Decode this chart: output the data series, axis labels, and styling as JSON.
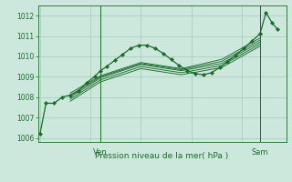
{
  "title": "Pression niveau de la mer( hPa )",
  "background_color": "#cce8dc",
  "grid_color": "#aacfbe",
  "line_color": "#1a6b2a",
  "ylim": [
    1005.8,
    1012.5
  ],
  "yticks": [
    1006,
    1007,
    1008,
    1009,
    1010,
    1011,
    1012
  ],
  "xlabel_ven": "Ven",
  "xlabel_sam": "Sam",
  "main_series": {
    "x": [
      0,
      0.3,
      0.7,
      1.1,
      1.5,
      1.9,
      2.3,
      2.7,
      3.0,
      3.3,
      3.7,
      4.1,
      4.5,
      4.9,
      5.3,
      5.7,
      6.1,
      6.5,
      6.9,
      7.3,
      7.7,
      8.1,
      8.5,
      8.9,
      9.3,
      9.7,
      10.1,
      10.5,
      10.9
    ],
    "y": [
      1006.2,
      1007.7,
      1007.7,
      1008.0,
      1008.1,
      1008.3,
      1008.7,
      1009.0,
      1009.3,
      1009.5,
      1009.8,
      1010.1,
      1010.4,
      1010.55,
      1010.55,
      1010.4,
      1010.15,
      1009.85,
      1009.55,
      1009.3,
      1009.15,
      1009.1,
      1009.2,
      1009.45,
      1009.75,
      1010.05,
      1010.4,
      1010.75,
      1011.1
    ]
  },
  "bundle_lines": [
    {
      "x": [
        1.5,
        3.0,
        5.0,
        7.0,
        9.0,
        10.9
      ],
      "y": [
        1008.1,
        1009.0,
        1009.65,
        1009.35,
        1009.75,
        1010.8
      ]
    },
    {
      "x": [
        1.5,
        3.0,
        5.0,
        7.0,
        9.0,
        10.9
      ],
      "y": [
        1008.2,
        1009.05,
        1009.7,
        1009.4,
        1009.85,
        1010.9
      ]
    },
    {
      "x": [
        1.5,
        3.0,
        5.0,
        7.0,
        9.0,
        10.9
      ],
      "y": [
        1008.0,
        1008.95,
        1009.6,
        1009.3,
        1009.65,
        1010.7
      ]
    },
    {
      "x": [
        1.5,
        3.0,
        5.0,
        7.0,
        9.0,
        10.9
      ],
      "y": [
        1007.9,
        1008.85,
        1009.5,
        1009.2,
        1009.55,
        1010.6
      ]
    },
    {
      "x": [
        1.5,
        3.0,
        5.0,
        7.0,
        9.0,
        10.9
      ],
      "y": [
        1007.8,
        1008.75,
        1009.4,
        1009.1,
        1009.45,
        1010.5
      ]
    }
  ],
  "peak_series": {
    "x": [
      10.9,
      11.2,
      11.5,
      11.75
    ],
    "y": [
      1011.1,
      1012.15,
      1011.65,
      1011.35
    ]
  },
  "ven_x": 3.0,
  "sam_x": 10.9,
  "xlim": [
    -0.1,
    12.2
  ]
}
